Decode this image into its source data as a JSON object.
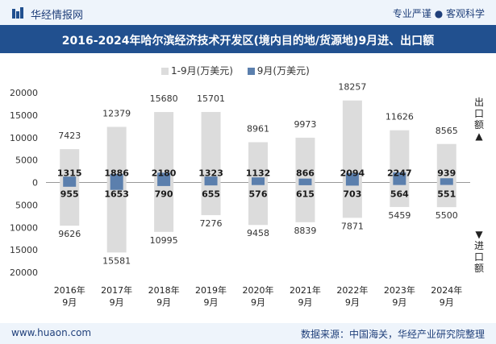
{
  "header": {
    "brand": "华经情报网",
    "tagline": "专业严谨 ● 客观科学"
  },
  "title": "2016-2024年哈尔滨经济技术开发区(境内目的地/货源地)9月进、出口额",
  "legend": {
    "series1": "1-9月(万美元)",
    "series2": "9月(万美元)"
  },
  "side_labels": {
    "export": "出口额▲",
    "import": "▼进口额"
  },
  "footer": {
    "website": "www.huaon.com",
    "source": "数据来源：中国海关，华经产业研究院整理"
  },
  "colors": {
    "ytd_bar": "#dcdcdc",
    "month_bar": "#5b7fad",
    "title_bg": "#21508f"
  },
  "chart_data": {
    "type": "bar",
    "categories": [
      "2016年\n9月",
      "2017年\n9月",
      "2018年\n9月",
      "2019年\n9月",
      "2020年\n9月",
      "2021年\n9月",
      "2022年\n9月",
      "2023年\n9月",
      "2024年\n9月"
    ],
    "ylim": [
      -20000,
      20000
    ],
    "yticks": [
      20000,
      15000,
      10000,
      5000,
      0,
      5000,
      10000,
      15000,
      20000
    ],
    "series": [
      {
        "name": "1-9月(万美元)",
        "export": [
          7423,
          12379,
          15680,
          15701,
          8961,
          9973,
          18257,
          11626,
          8565
        ],
        "import": [
          9626,
          15581,
          10995,
          7276,
          9458,
          8839,
          7871,
          5459,
          5500
        ]
      },
      {
        "name": "9月(万美元)",
        "export": [
          1315,
          1886,
          2180,
          1323,
          1132,
          866,
          2094,
          2247,
          939
        ],
        "import": [
          955,
          1653,
          790,
          655,
          576,
          615,
          703,
          564,
          551
        ]
      }
    ]
  }
}
